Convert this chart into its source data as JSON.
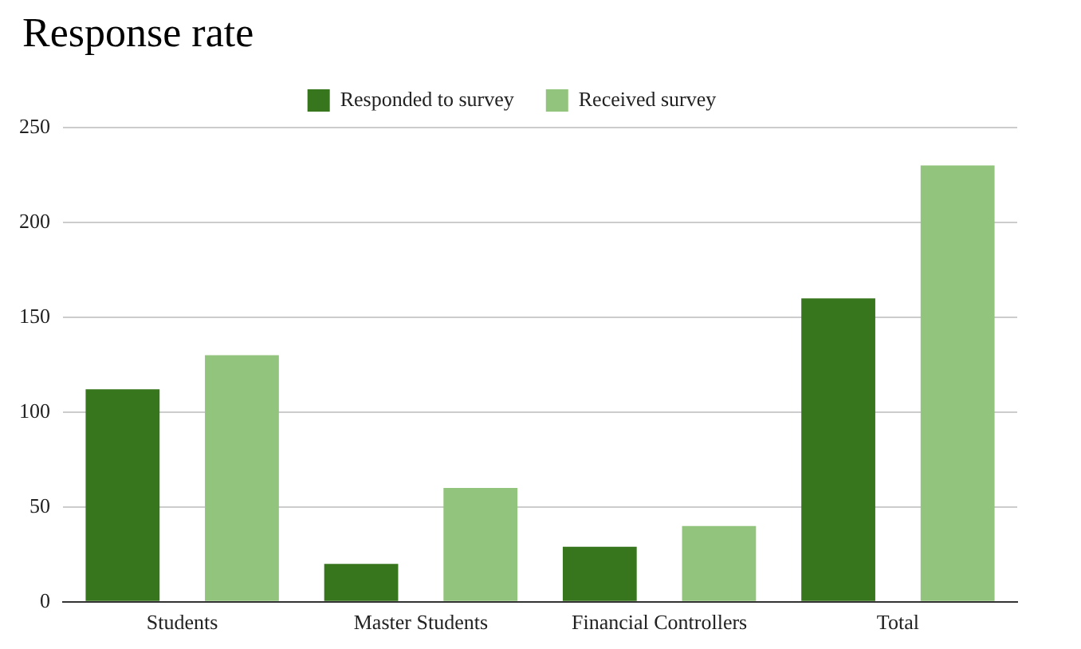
{
  "chart_data": {
    "type": "bar",
    "title": "Response rate",
    "categories": [
      "Students",
      "Master Students",
      "Financial Controllers",
      "Total"
    ],
    "series": [
      {
        "name": "Responded to survey",
        "color": "#38761d",
        "values": [
          112,
          20,
          29,
          160
        ]
      },
      {
        "name": "Received survey",
        "color": "#93c47d",
        "values": [
          130,
          60,
          40,
          230
        ]
      }
    ],
    "ylim": [
      0,
      250
    ],
    "yticks": [
      0,
      50,
      100,
      150,
      200,
      250
    ],
    "grid": "y",
    "legend": "top"
  }
}
